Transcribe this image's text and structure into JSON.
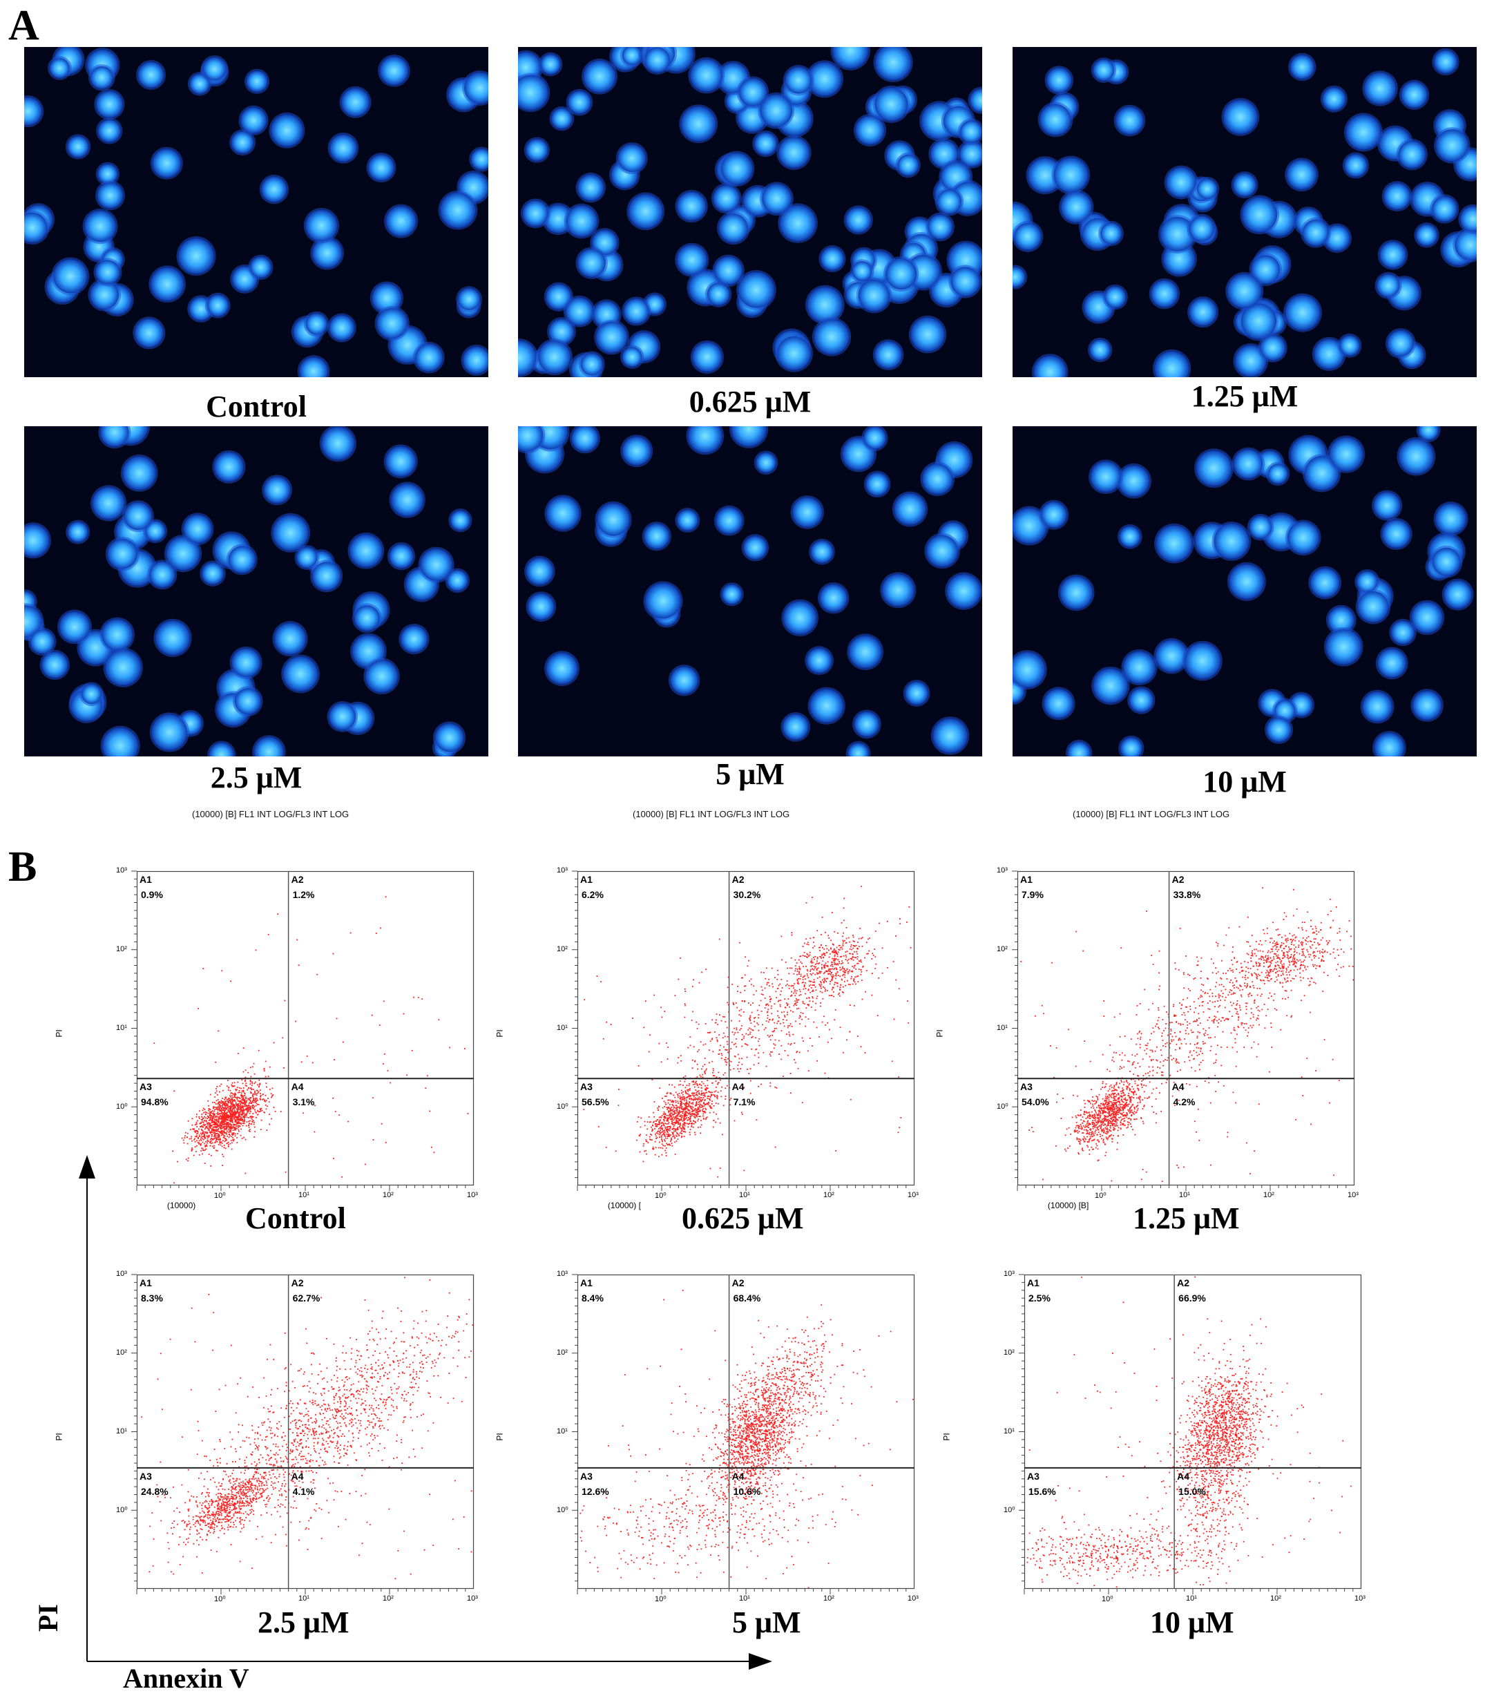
{
  "panel_a": {
    "letter": "A",
    "images": [
      {
        "label": "Control"
      },
      {
        "label": "0.625 μM"
      },
      {
        "label": "1.25 μM"
      },
      {
        "label": "2.5 μM"
      },
      {
        "label": "5 μM"
      },
      {
        "label": "10 μM"
      }
    ],
    "flow_captions": [
      "(10000) [B] FL1 INT LOG/FL3 INT LOG",
      "(10000) [B] FL1 INT LOG/FL3 INT LOG",
      "(10000) [B] FL1 INT LOG/FL3 INT LOG"
    ]
  },
  "panel_b": {
    "letter": "B",
    "y_axis_label": "PI",
    "x_axis_label": "Annexin V",
    "plot_ylabel": "PI",
    "plots": [
      {
        "label": "Control",
        "under": "(10000)",
        "quadrants": [
          {
            "id": "A1",
            "pct": "0.9%"
          },
          {
            "id": "A2",
            "pct": "1.2%"
          },
          {
            "id": "A3",
            "pct": "94.8%"
          },
          {
            "id": "A4",
            "pct": "3.1%"
          }
        ]
      },
      {
        "label": "0.625 μM",
        "under": "(10000) [",
        "quadrants": [
          {
            "id": "A1",
            "pct": "6.2%"
          },
          {
            "id": "A2",
            "pct": "30.2%"
          },
          {
            "id": "A3",
            "pct": "56.5%"
          },
          {
            "id": "A4",
            "pct": "7.1%"
          }
        ]
      },
      {
        "label": "1.25 μM",
        "under": "(10000) [B]",
        "quadrants": [
          {
            "id": "A1",
            "pct": "7.9%"
          },
          {
            "id": "A2",
            "pct": "33.8%"
          },
          {
            "id": "A3",
            "pct": "54.0%"
          },
          {
            "id": "A4",
            "pct": "4.2%"
          }
        ]
      },
      {
        "label": "2.5 μM",
        "under": "",
        "quadrants": [
          {
            "id": "A1",
            "pct": "8.3%"
          },
          {
            "id": "A2",
            "pct": "62.7%"
          },
          {
            "id": "A3",
            "pct": "24.8%"
          },
          {
            "id": "A4",
            "pct": "4.1%"
          }
        ]
      },
      {
        "label": "5 μM",
        "under": "",
        "quadrants": [
          {
            "id": "A1",
            "pct": "8.4%"
          },
          {
            "id": "A2",
            "pct": "68.4%"
          },
          {
            "id": "A3",
            "pct": "12.6%"
          },
          {
            "id": "A4",
            "pct": "10.6%"
          }
        ]
      },
      {
        "label": "10 μM",
        "under": "",
        "quadrants": [
          {
            "id": "A1",
            "pct": "2.5%"
          },
          {
            "id": "A2",
            "pct": "66.9%"
          },
          {
            "id": "A3",
            "pct": "15.6%"
          },
          {
            "id": "A4",
            "pct": "15.0%"
          }
        ]
      }
    ],
    "tick_labels": {
      "y": [
        "10³",
        "10²",
        "10¹",
        "10⁰"
      ],
      "x": [
        "10⁰",
        "10¹",
        "10²",
        "10³"
      ]
    },
    "colors": {
      "dots": "#ff2020",
      "stain": "#2a8cff"
    }
  }
}
